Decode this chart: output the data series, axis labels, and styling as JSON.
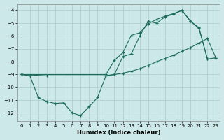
{
  "xlabel": "Humidex (Indice chaleur)",
  "bg_color": "#cce8e8",
  "line_color": "#1a6b5a",
  "grid_color": "#aacccc",
  "xlim": [
    -0.5,
    23.5
  ],
  "ylim": [
    -12.6,
    -3.5
  ],
  "yticks": [
    -4,
    -5,
    -6,
    -7,
    -8,
    -9,
    -10,
    -11,
    -12
  ],
  "xticks": [
    0,
    1,
    2,
    3,
    4,
    5,
    6,
    7,
    8,
    9,
    10,
    11,
    12,
    13,
    14,
    15,
    16,
    17,
    18,
    19,
    20,
    21,
    22,
    23
  ],
  "line1_x": [
    0,
    1,
    2,
    3,
    4,
    5,
    6,
    7,
    8,
    9,
    10,
    11,
    12,
    13,
    14,
    15,
    16,
    17,
    18,
    19,
    20,
    21,
    22
  ],
  "line1_y": [
    -9.0,
    -9.1,
    -10.8,
    -11.1,
    -11.25,
    -11.2,
    -12.0,
    -12.2,
    -11.5,
    -10.8,
    -9.1,
    -9.0,
    -7.6,
    -7.4,
    -6.0,
    -4.85,
    -5.0,
    -4.5,
    -4.3,
    -4.0,
    -4.85,
    -5.4,
    -7.8
  ],
  "line2_x": [
    0,
    3,
    10,
    11,
    12,
    13,
    14,
    15,
    16,
    17,
    18,
    19,
    20,
    21,
    22,
    23
  ],
  "line2_y": [
    -9.0,
    -9.1,
    -9.1,
    -9.0,
    -8.9,
    -8.75,
    -8.55,
    -8.3,
    -8.0,
    -7.75,
    -7.5,
    -7.2,
    -6.9,
    -6.55,
    -6.2,
    -7.7
  ],
  "line3_x": [
    0,
    10,
    11,
    12,
    13,
    14,
    15,
    16,
    17,
    18,
    19,
    20,
    21,
    22,
    23
  ],
  "line3_y": [
    -9.0,
    -9.0,
    -7.9,
    -7.3,
    -5.95,
    -5.75,
    -5.05,
    -4.7,
    -4.45,
    -4.25,
    -4.0,
    -4.85,
    -5.35,
    -7.8,
    -7.7
  ]
}
